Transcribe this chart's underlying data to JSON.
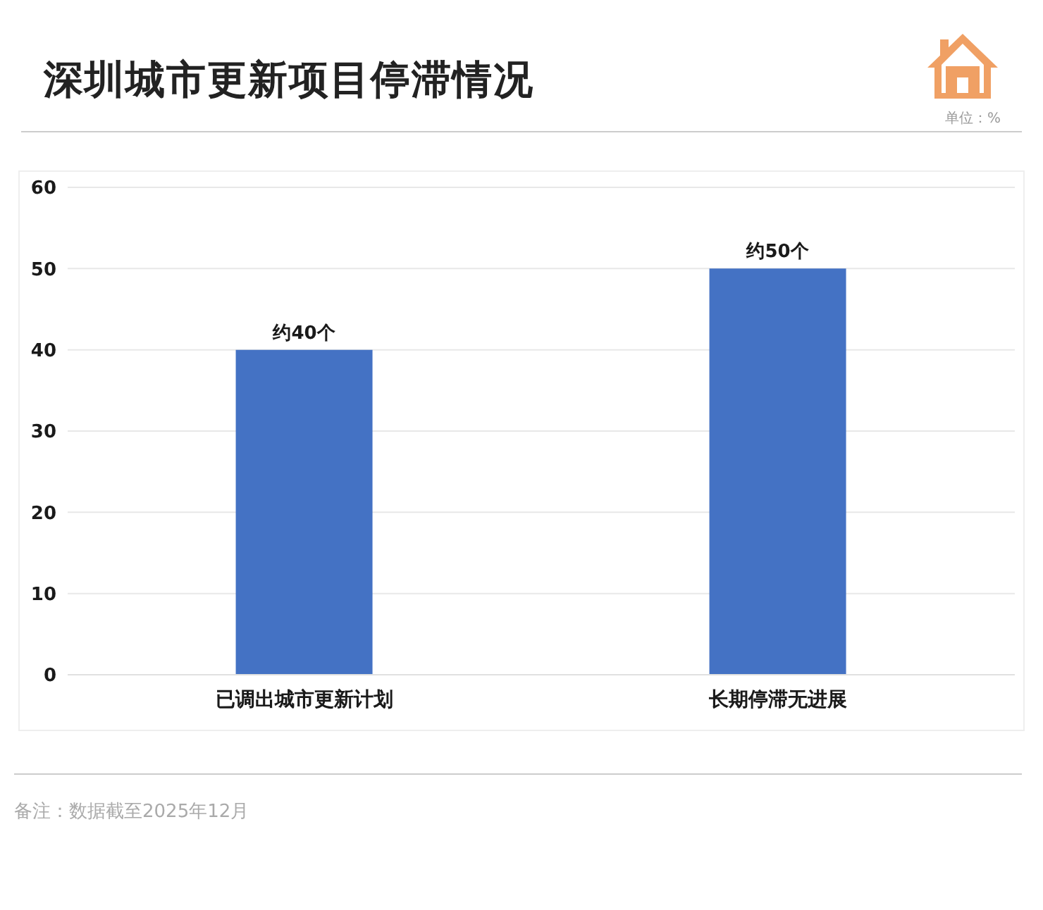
{
  "chart_data": {
    "type": "bar",
    "title": "深圳城市更新项目停滞情况",
    "categories": [
      "已调出城市更新计划",
      "长期停滞无进展"
    ],
    "values": [
      40,
      50
    ],
    "color": "#4472c4",
    "value_labels": [
      "约40个",
      "约50个"
    ],
    "ylim": [
      0,
      60
    ],
    "yticks": [
      0,
      10,
      20,
      30,
      40,
      50,
      60
    ],
    "grid": "y",
    "annotations": [
      "单位：%",
      "备注：数据截至2025年12月"
    ]
  }
}
